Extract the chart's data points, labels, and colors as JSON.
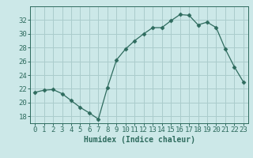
{
  "x": [
    0,
    1,
    2,
    3,
    4,
    5,
    6,
    7,
    8,
    9,
    10,
    11,
    12,
    13,
    14,
    15,
    16,
    17,
    18,
    19,
    20,
    21,
    22,
    23
  ],
  "y": [
    21.5,
    21.8,
    21.9,
    21.3,
    20.3,
    19.3,
    18.5,
    17.6,
    22.2,
    26.2,
    27.8,
    29.0,
    30.0,
    30.9,
    30.9,
    31.9,
    32.8,
    32.7,
    31.3,
    31.7,
    30.9,
    27.8,
    25.2,
    23.0
  ],
  "line_color": "#2e6b5e",
  "marker": "D",
  "marker_size": 2.5,
  "bg_color": "#cce8e8",
  "grid_color": "#aacccc",
  "xlabel": "Humidex (Indice chaleur)",
  "ylim": [
    17,
    34
  ],
  "xlim": [
    -0.5,
    23.5
  ],
  "yticks": [
    18,
    20,
    22,
    24,
    26,
    28,
    30,
    32
  ],
  "xticks": [
    0,
    1,
    2,
    3,
    4,
    5,
    6,
    7,
    8,
    9,
    10,
    11,
    12,
    13,
    14,
    15,
    16,
    17,
    18,
    19,
    20,
    21,
    22,
    23
  ],
  "label_fontsize": 7,
  "tick_fontsize": 6.5
}
